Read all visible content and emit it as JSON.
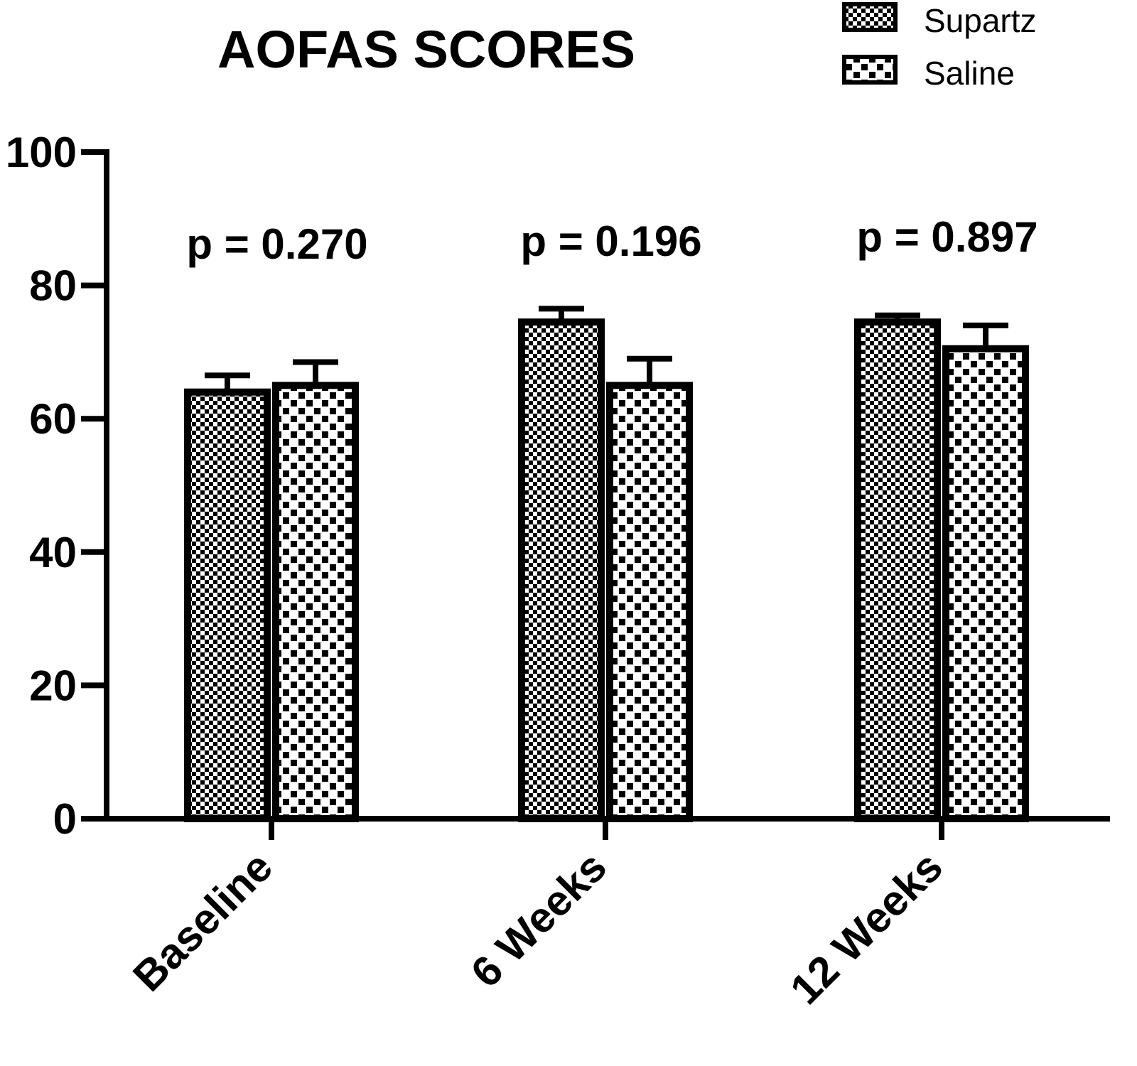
{
  "chart_data": {
    "type": "bar",
    "title": "AOFAS SCORES",
    "xlabel": "",
    "ylabel": "",
    "ylim": [
      0,
      100
    ],
    "yticks": [
      0,
      20,
      40,
      60,
      80,
      100
    ],
    "categories": [
      "Baseline",
      "6 Weeks",
      "12 Weeks"
    ],
    "series": [
      {
        "name": "Supartz",
        "pattern": "fine-checker",
        "values": [
          64,
          74.5,
          74.5
        ],
        "errors": [
          2.5,
          2,
          1
        ]
      },
      {
        "name": "Saline",
        "pattern": "coarse-checker",
        "values": [
          65,
          65,
          70.5
        ],
        "errors": [
          3.5,
          4,
          3.5
        ]
      }
    ],
    "annotations": [
      "p = 0.270",
      "p = 0.196",
      "p = 0.897"
    ],
    "legend_position": "top-right",
    "grid": false
  }
}
